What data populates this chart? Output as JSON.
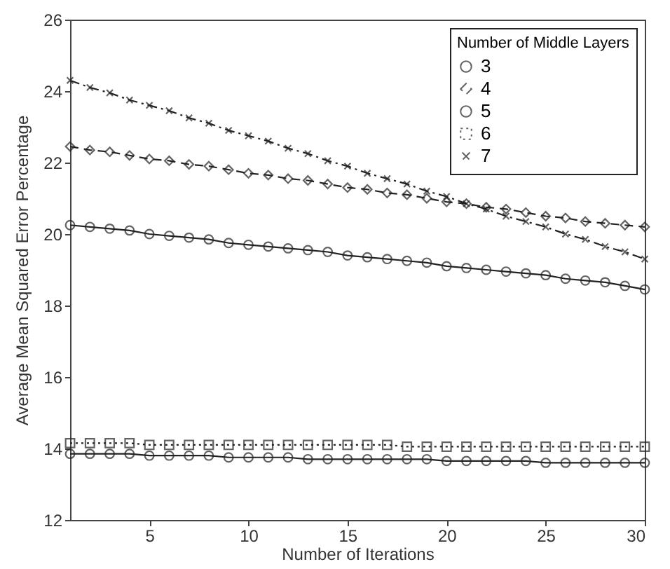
{
  "chart_data": {
    "type": "line",
    "xlabel": "Number of Iterations",
    "ylabel": "Average Mean Squared Error Percentage",
    "legend_title": "Number of Middle Layers",
    "legend": "top right",
    "grid": false,
    "x": [
      1,
      2,
      3,
      4,
      5,
      6,
      7,
      8,
      9,
      10,
      11,
      12,
      13,
      14,
      15,
      16,
      17,
      18,
      19,
      20,
      21,
      22,
      23,
      24,
      25,
      26,
      27,
      28,
      29,
      30
    ],
    "xlim": [
      1,
      30
    ],
    "xticks": [
      5,
      10,
      15,
      20,
      25,
      30
    ],
    "ylim": [
      12,
      26
    ],
    "yticks": [
      12,
      14,
      16,
      18,
      20,
      22,
      24,
      26
    ],
    "series": [
      {
        "name": "3",
        "color": "#222222",
        "marker": "circle",
        "line_style": "solid",
        "values": [
          20.25,
          20.2,
          20.15,
          20.1,
          20.0,
          19.95,
          19.9,
          19.85,
          19.75,
          19.7,
          19.65,
          19.6,
          19.55,
          19.5,
          19.4,
          19.35,
          19.3,
          19.25,
          19.2,
          19.1,
          19.05,
          19.0,
          18.95,
          18.9,
          18.85,
          18.75,
          18.7,
          18.65,
          18.55,
          18.45
        ]
      },
      {
        "name": "4",
        "color": "#222222",
        "marker": "diamond",
        "line_style": "dashed",
        "values": [
          22.45,
          22.35,
          22.3,
          22.2,
          22.1,
          22.05,
          21.95,
          21.9,
          21.8,
          21.7,
          21.65,
          21.55,
          21.5,
          21.4,
          21.3,
          21.25,
          21.15,
          21.1,
          21.0,
          20.9,
          20.85,
          20.75,
          20.7,
          20.6,
          20.5,
          20.45,
          20.35,
          20.3,
          20.25,
          20.2
        ]
      },
      {
        "name": "5",
        "color": "#222222",
        "marker": "circle",
        "line_style": "solid",
        "values": [
          13.85,
          13.85,
          13.85,
          13.85,
          13.8,
          13.8,
          13.8,
          13.8,
          13.75,
          13.75,
          13.75,
          13.75,
          13.7,
          13.7,
          13.7,
          13.7,
          13.7,
          13.7,
          13.7,
          13.65,
          13.65,
          13.65,
          13.65,
          13.65,
          13.6,
          13.6,
          13.6,
          13.6,
          13.6,
          13.6
        ]
      },
      {
        "name": "6",
        "color": "#222222",
        "marker": "square",
        "line_style": "dotted",
        "values": [
          14.15,
          14.15,
          14.15,
          14.15,
          14.1,
          14.1,
          14.1,
          14.1,
          14.1,
          14.1,
          14.1,
          14.1,
          14.1,
          14.1,
          14.1,
          14.1,
          14.1,
          14.05,
          14.05,
          14.05,
          14.05,
          14.05,
          14.05,
          14.05,
          14.05,
          14.05,
          14.05,
          14.05,
          14.05,
          14.05
        ]
      },
      {
        "name": "7",
        "color": "#222222",
        "marker": "cross",
        "line_style": "dashdot",
        "values": [
          24.3,
          24.1,
          23.95,
          23.75,
          23.6,
          23.45,
          23.25,
          23.1,
          22.9,
          22.75,
          22.6,
          22.4,
          22.25,
          22.05,
          21.9,
          21.7,
          21.55,
          21.4,
          21.2,
          21.05,
          20.85,
          20.7,
          20.5,
          20.35,
          20.2,
          20.0,
          19.85,
          19.65,
          19.5,
          19.3
        ]
      }
    ]
  }
}
